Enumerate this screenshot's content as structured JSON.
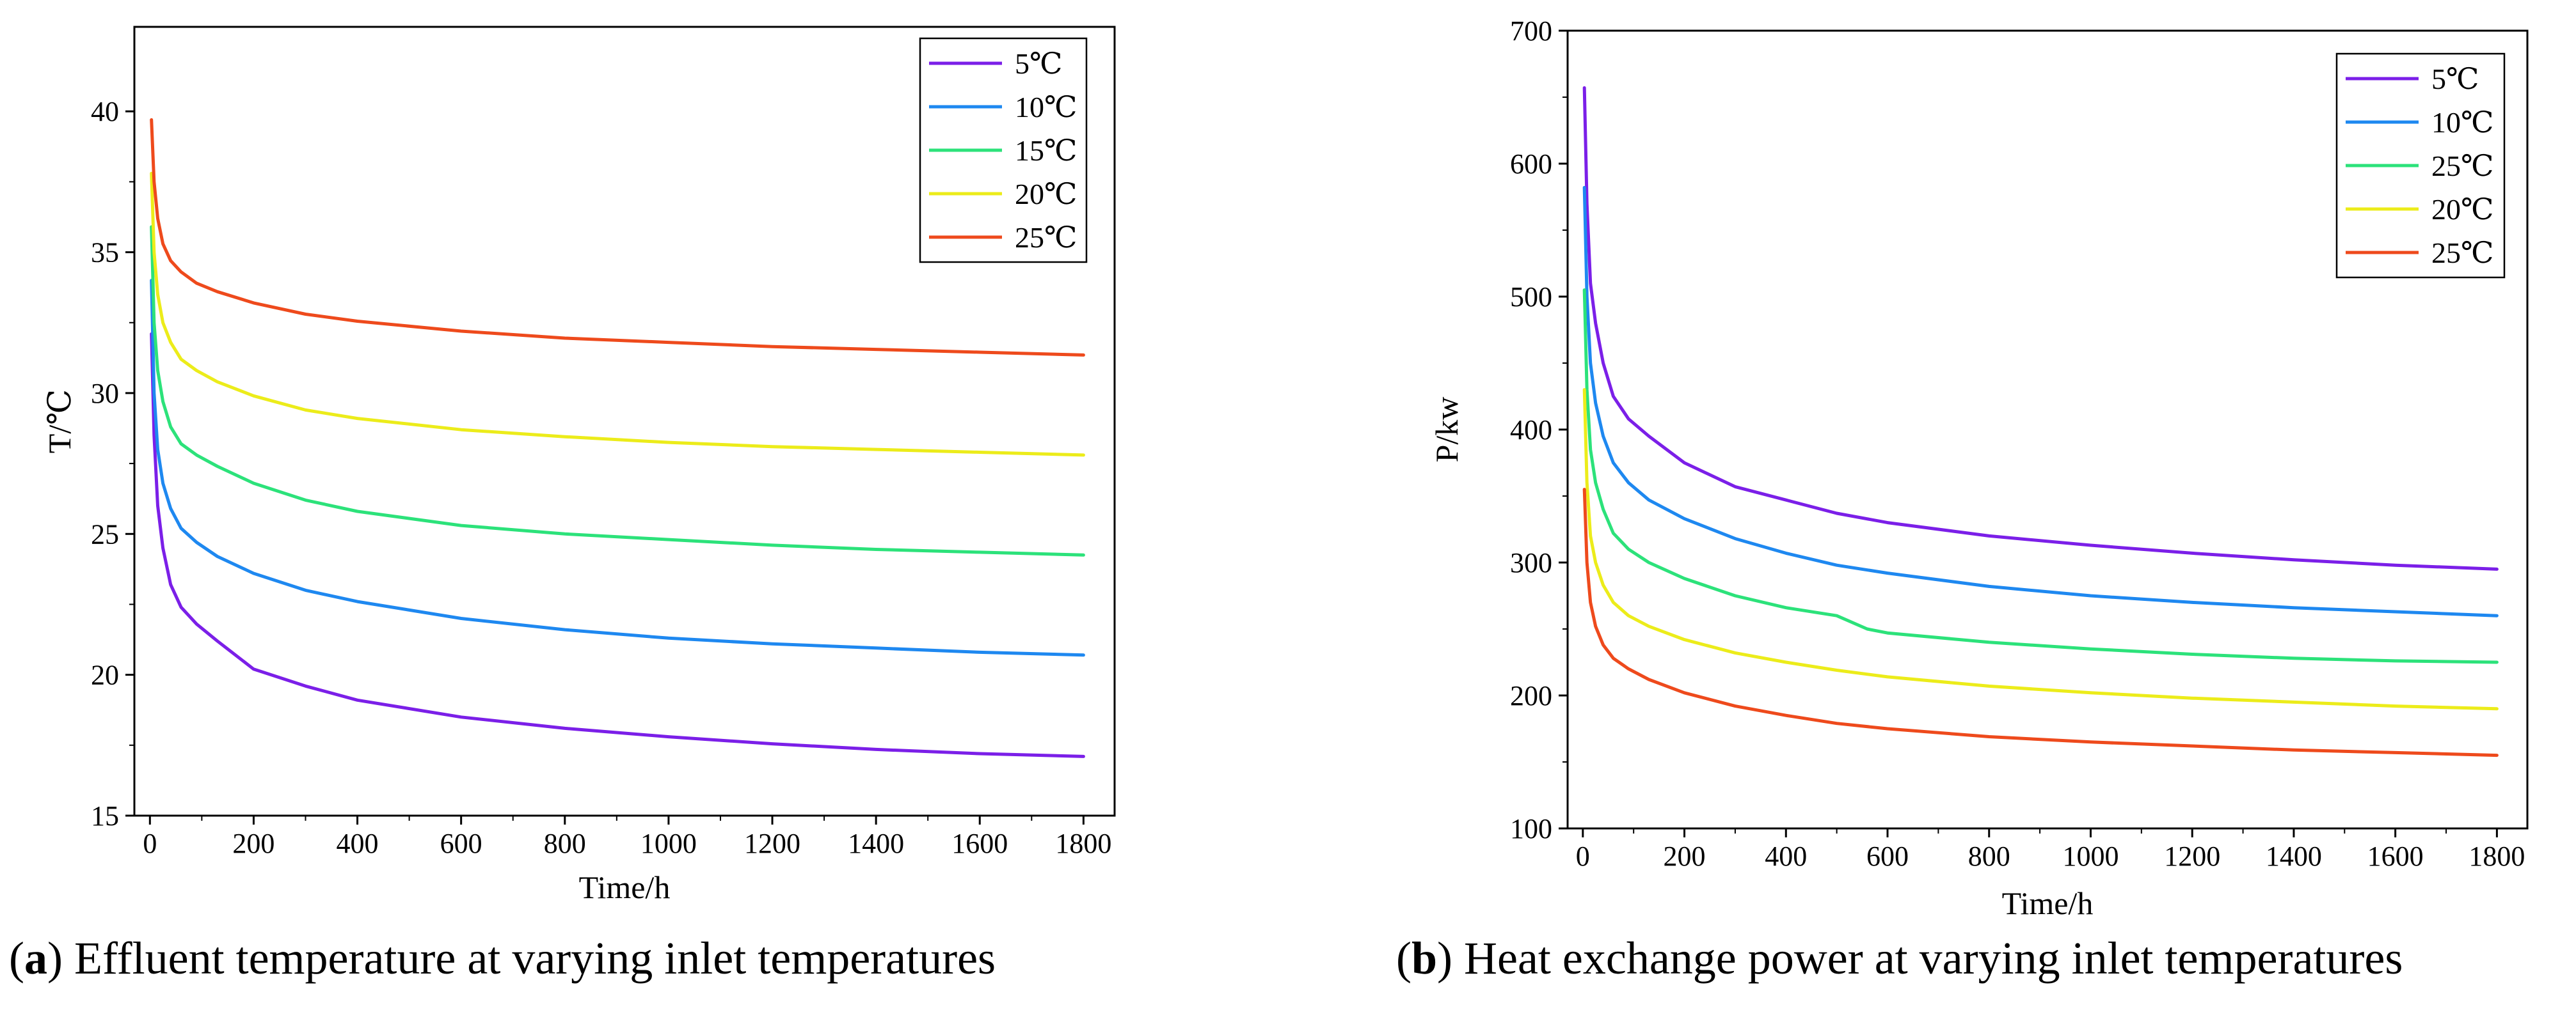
{
  "chart_data": [
    {
      "type": "line",
      "xlabel": "Time/h",
      "ylabel": "T/℃",
      "xlim": [
        -30,
        1860
      ],
      "ylim": [
        15,
        43
      ],
      "xticks": [
        0,
        200,
        400,
        600,
        800,
        1000,
        1200,
        1400,
        1600,
        1800
      ],
      "yticks": [
        15,
        20,
        25,
        30,
        35,
        40
      ],
      "legend_position": "top-right",
      "grid": false,
      "series": [
        {
          "name": "5℃",
          "color": "#7b1fe8",
          "x": [
            3,
            8,
            15,
            25,
            40,
            60,
            90,
            130,
            200,
            300,
            400,
            600,
            800,
            1000,
            1200,
            1400,
            1600,
            1800
          ],
          "y": [
            32.1,
            28.5,
            26.0,
            24.5,
            23.2,
            22.4,
            21.8,
            21.2,
            20.2,
            19.6,
            19.1,
            18.5,
            18.1,
            17.8,
            17.55,
            17.35,
            17.2,
            17.1
          ]
        },
        {
          "name": "10℃",
          "color": "#1e88f0",
          "x": [
            3,
            8,
            15,
            25,
            40,
            60,
            90,
            130,
            200,
            300,
            400,
            600,
            800,
            1000,
            1200,
            1400,
            1600,
            1800
          ],
          "y": [
            34.0,
            30.0,
            28.0,
            26.8,
            25.9,
            25.2,
            24.7,
            24.2,
            23.6,
            23.0,
            22.6,
            22.0,
            21.6,
            21.3,
            21.1,
            20.95,
            20.8,
            20.7
          ]
        },
        {
          "name": "15℃",
          "color": "#2ce27a",
          "x": [
            3,
            8,
            15,
            25,
            40,
            60,
            90,
            130,
            200,
            300,
            400,
            600,
            800,
            1000,
            1200,
            1400,
            1600,
            1800
          ],
          "y": [
            35.9,
            32.5,
            30.8,
            29.7,
            28.8,
            28.2,
            27.8,
            27.4,
            26.8,
            26.2,
            25.8,
            25.3,
            25.0,
            24.8,
            24.6,
            24.45,
            24.35,
            24.25
          ]
        },
        {
          "name": "20℃",
          "color": "#ecec1a",
          "x": [
            3,
            8,
            15,
            25,
            40,
            60,
            90,
            130,
            200,
            300,
            400,
            600,
            800,
            1000,
            1200,
            1400,
            1600,
            1800
          ],
          "y": [
            37.8,
            35.0,
            33.5,
            32.5,
            31.8,
            31.2,
            30.8,
            30.4,
            29.9,
            29.4,
            29.1,
            28.7,
            28.45,
            28.25,
            28.1,
            28.0,
            27.9,
            27.8
          ]
        },
        {
          "name": "25℃",
          "color": "#ee4a1c",
          "x": [
            3,
            8,
            15,
            25,
            40,
            60,
            90,
            130,
            200,
            300,
            400,
            600,
            800,
            1000,
            1200,
            1400,
            1600,
            1800
          ],
          "y": [
            39.7,
            37.5,
            36.2,
            35.3,
            34.7,
            34.3,
            33.9,
            33.6,
            33.2,
            32.8,
            32.55,
            32.2,
            31.95,
            31.8,
            31.65,
            31.55,
            31.45,
            31.35
          ]
        }
      ]
    },
    {
      "type": "line",
      "xlabel": "Time/h",
      "ylabel": "P/kw",
      "xlim": [
        -30,
        1860
      ],
      "ylim": [
        100,
        700
      ],
      "xticks": [
        0,
        200,
        400,
        600,
        800,
        1000,
        1200,
        1400,
        1600,
        1800
      ],
      "yticks": [
        100,
        200,
        300,
        400,
        500,
        600,
        700
      ],
      "legend_position": "top-right",
      "grid": false,
      "series": [
        {
          "name": "5℃",
          "color": "#7b1fe8",
          "x": [
            3,
            8,
            15,
            25,
            40,
            60,
            90,
            130,
            200,
            300,
            400,
            500,
            600,
            800,
            1000,
            1200,
            1400,
            1600,
            1800
          ],
          "y": [
            657,
            570,
            510,
            480,
            450,
            425,
            408,
            395,
            375,
            357,
            347,
            337,
            330,
            320,
            313,
            307,
            302,
            298,
            295
          ]
        },
        {
          "name": "10℃",
          "color": "#1e88f0",
          "x": [
            3,
            8,
            15,
            25,
            40,
            60,
            90,
            130,
            200,
            300,
            400,
            500,
            600,
            800,
            1000,
            1200,
            1400,
            1600,
            1800
          ],
          "y": [
            582,
            500,
            450,
            420,
            395,
            375,
            360,
            347,
            333,
            318,
            307,
            298,
            292,
            282,
            275,
            270,
            266,
            263,
            260
          ]
        },
        {
          "name": "25℃",
          "color": "#2ce27a",
          "x": [
            3,
            8,
            15,
            25,
            40,
            60,
            90,
            130,
            200,
            300,
            400,
            500,
            560,
            600,
            800,
            1000,
            1200,
            1400,
            1600,
            1800
          ],
          "y": [
            505,
            430,
            385,
            360,
            340,
            322,
            310,
            300,
            288,
            275,
            266,
            260,
            250,
            247,
            240,
            235,
            231,
            228,
            226,
            225
          ]
        },
        {
          "name": "20℃",
          "color": "#ecec1a",
          "x": [
            3,
            8,
            15,
            25,
            40,
            60,
            90,
            130,
            200,
            300,
            400,
            500,
            600,
            800,
            1000,
            1200,
            1400,
            1600,
            1800
          ],
          "y": [
            430,
            360,
            320,
            300,
            283,
            270,
            260,
            252,
            242,
            232,
            225,
            219,
            214,
            207,
            202,
            198,
            195,
            192,
            190
          ]
        },
        {
          "name": "25℃",
          "color": "#ee4a1c",
          "x": [
            3,
            8,
            15,
            25,
            40,
            60,
            90,
            130,
            200,
            300,
            400,
            500,
            600,
            800,
            1000,
            1200,
            1400,
            1600,
            1800
          ],
          "y": [
            355,
            300,
            270,
            252,
            238,
            228,
            220,
            212,
            202,
            192,
            185,
            179,
            175,
            169,
            165,
            162,
            159,
            157,
            155
          ]
        }
      ]
    }
  ],
  "captions": {
    "a": {
      "letter": "a",
      "text": "Effluent temperature at varying inlet temperatures"
    },
    "b": {
      "letter": "b",
      "text": "Heat exchange power at varying inlet temperatures"
    }
  }
}
